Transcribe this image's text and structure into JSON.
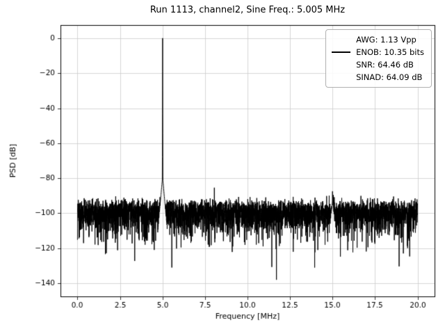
{
  "page": {
    "background": "#ffffff"
  },
  "chart_data": {
    "type": "line",
    "title": "Run 1113, channel2, Sine Freq.: 5.005 MHz",
    "xlabel": "Frequency [MHz]",
    "ylabel": "PSD [dB]",
    "line_color": "#000000",
    "grid": true,
    "grid_color": "#cccccc",
    "xlim": [
      -1,
      21
    ],
    "ylim": [
      -147.5,
      7.5
    ],
    "xticks": [
      0.0,
      2.5,
      5.0,
      7.5,
      10.0,
      12.5,
      15.0,
      17.5,
      20.0
    ],
    "xtick_labels": [
      "0.0",
      "2.5",
      "5.0",
      "7.5",
      "10.0",
      "12.5",
      "15.0",
      "17.5",
      "20.0"
    ],
    "yticks": [
      0,
      -20,
      -40,
      -60,
      -80,
      -100,
      -120,
      -140
    ],
    "ytick_labels": [
      "0",
      "−20",
      "−40",
      "−60",
      "−80",
      "−100",
      "−120",
      "−140"
    ],
    "legend": {
      "position": "upper right",
      "entries": [
        {
          "label": "AWG: 1.13 Vpp",
          "handle": false
        },
        {
          "label": "ENOB: 10.35 bits",
          "handle": true
        },
        {
          "label": "SNR: 64.46 dB",
          "handle": false
        },
        {
          "label": "SINAD: 64.09 dB",
          "handle": false
        }
      ]
    },
    "measurements": {
      "awg_vpp": 1.13,
      "enob_bits": 10.35,
      "snr_db": 64.46,
      "sinad_db": 64.09
    },
    "signal": {
      "fundamental_mhz": 5.005,
      "fundamental_db": 0,
      "noise_floor_db": -104,
      "noise_band_top_db": -92,
      "noise_band_bottom_db": -116,
      "deepest_null_db": -138
    },
    "spurs": [
      {
        "f": 5.005,
        "level": -79,
        "hw": 0.18
      },
      {
        "f": 5.005,
        "level": 0,
        "hw": 0.004
      },
      {
        "f": 0.05,
        "level": -89.5,
        "hw": 0.008
      },
      {
        "f": 8.05,
        "level": -82.5,
        "hw": 0.008
      },
      {
        "f": 10.05,
        "level": -90.5,
        "hw": 0.008
      },
      {
        "f": 14.85,
        "level": -89,
        "hw": 0.008
      },
      {
        "f": 15.0,
        "level": -85,
        "hw": 0.01
      },
      {
        "f": 15.1,
        "level": -87.5,
        "hw": 0.008
      },
      {
        "f": 15.0,
        "level": -92,
        "hw": 0.2
      },
      {
        "f": 16.1,
        "level": -87,
        "hw": 0.008
      }
    ],
    "notches": [
      {
        "f": 11.7,
        "level": -138
      },
      {
        "f": 13.95,
        "level": -131
      },
      {
        "f": 5.55,
        "level": -131
      }
    ],
    "synthesis": {
      "points": 4096,
      "seed": 1113,
      "f_start": 0,
      "f_end": 20,
      "noise_floor_db": -98.5,
      "clip_db": -144
    }
  }
}
